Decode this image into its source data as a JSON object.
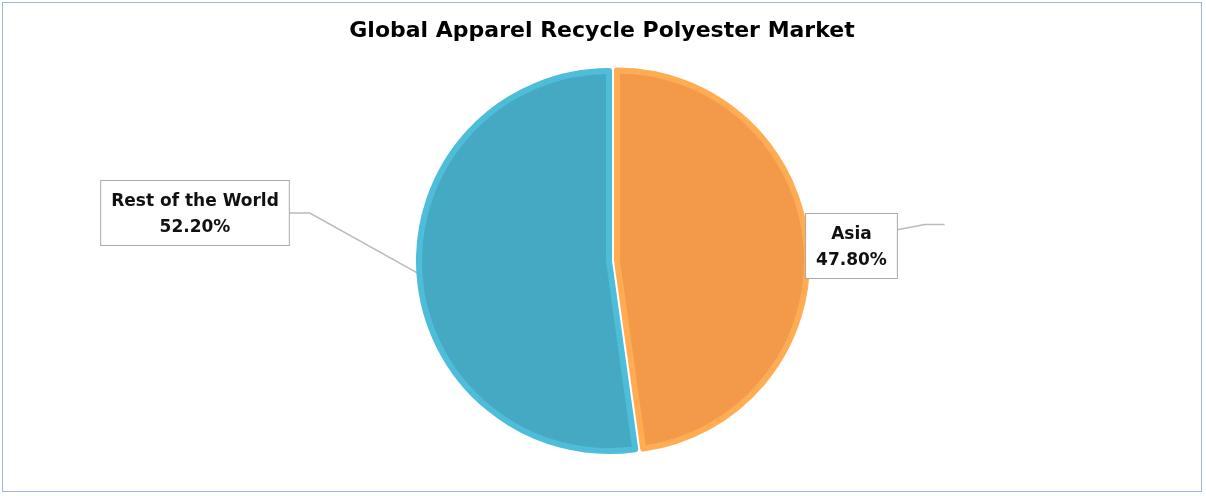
{
  "chart_data": {
    "type": "pie",
    "title": "Global Apparel Recycle Polyester Market",
    "categories": [
      "Asia",
      "Rest of the World"
    ],
    "values": [
      47.8,
      52.2
    ],
    "value_labels": [
      "47.80%",
      "52.20%"
    ],
    "colors": [
      "#f39a4a",
      "#46a9c3"
    ],
    "legend": false
  }
}
